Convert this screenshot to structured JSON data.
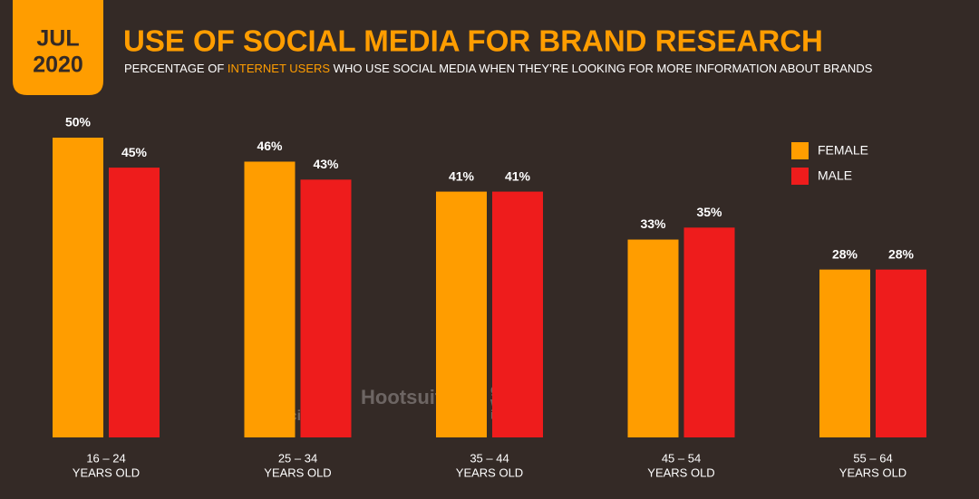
{
  "chart_data": {
    "type": "bar",
    "badge": [
      "JUL",
      "2020"
    ],
    "title": "USE OF SOCIAL MEDIA FOR BRAND RESEARCH",
    "subtitle": [
      "PERCENTAGE OF ",
      "INTERNET USERS",
      " WHO USE SOCIAL MEDIA WHEN THEY’RE LOOKING FOR MORE INFORMATION ABOUT BRANDS"
    ],
    "categories": [
      [
        "16 – 24",
        "YEARS OLD"
      ],
      [
        "25 – 34",
        "YEARS OLD"
      ],
      [
        "35 – 44",
        "YEARS OLD"
      ],
      [
        "45 – 54",
        "YEARS OLD"
      ],
      [
        "55 – 64",
        "YEARS OLD"
      ]
    ],
    "series": [
      {
        "name": "FEMALE",
        "color": "#ff9d00",
        "values": [
          50,
          46,
          41,
          33,
          28
        ],
        "value_labels": [
          "50%",
          "46%",
          "41%",
          "33%",
          "28%"
        ]
      },
      {
        "name": "MALE",
        "color": "#ee1c1c",
        "values": [
          45,
          43,
          41,
          35,
          28
        ],
        "value_labels": [
          "45%",
          "43%",
          "41%",
          "35%",
          "28%"
        ]
      }
    ],
    "ylim": [
      0,
      50
    ],
    "legend": "upper right",
    "watermarks": [
      [
        "we",
        "are",
        "social"
      ],
      [
        "Hootsuite"
      ],
      [
        "global",
        "web",
        "index"
      ]
    ]
  }
}
